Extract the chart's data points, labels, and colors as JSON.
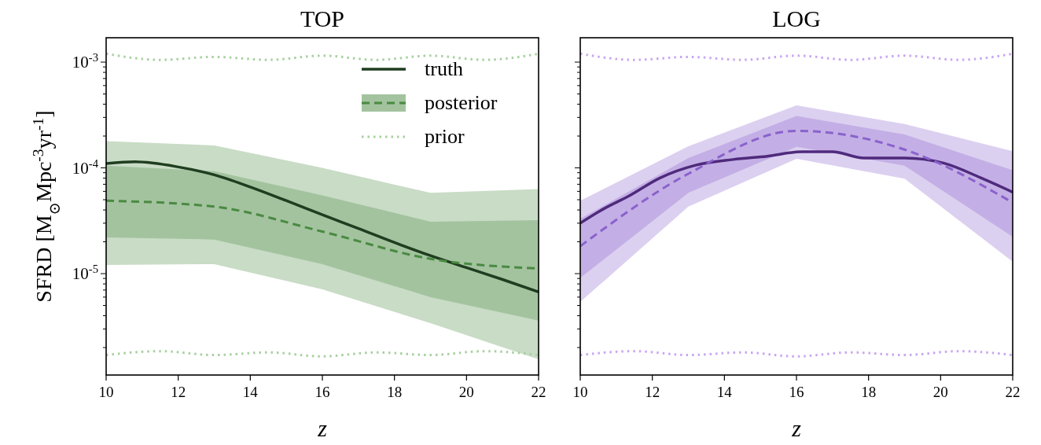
{
  "chart_data": [
    {
      "type": "line",
      "title": "TOP",
      "xlabel": "z",
      "ylabel": "SFRD [M$_{⊙}$Mpc$^{-3}$yr$^{-1}$]",
      "log": "y",
      "grid": false,
      "legend": "top right",
      "xlim": [
        10,
        22
      ],
      "xticks": [
        10,
        12,
        14,
        16,
        18,
        20,
        22
      ],
      "ylim": [
        1.1e-06,
        0.0017
      ],
      "yticks": [
        {
          "value": 2e-06,
          "label": null
        },
        {
          "value": 3e-06,
          "label": null
        },
        {
          "value": 4e-06,
          "label": null
        },
        {
          "value": 5e-06,
          "label": null
        },
        {
          "value": 6e-06,
          "label": null
        },
        {
          "value": 7e-06,
          "label": null
        },
        {
          "value": 8e-06,
          "label": null
        },
        {
          "value": 9e-06,
          "label": null
        },
        {
          "value": 1e-05,
          "label": "10$^{-5}$"
        },
        {
          "value": 2e-05,
          "label": null
        },
        {
          "value": 3e-05,
          "label": null
        },
        {
          "value": 4e-05,
          "label": null
        },
        {
          "value": 5e-05,
          "label": null
        },
        {
          "value": 6e-05,
          "label": null
        },
        {
          "value": 7e-05,
          "label": null
        },
        {
          "value": 8e-05,
          "label": null
        },
        {
          "value": 9e-05,
          "label": null
        },
        {
          "value": 0.0001,
          "label": "10$^{-4}$"
        },
        {
          "value": 0.0002,
          "label": null
        },
        {
          "value": 0.0003,
          "label": null
        },
        {
          "value": 0.0004,
          "label": null
        },
        {
          "value": 0.0005,
          "label": null
        },
        {
          "value": 0.0006,
          "label": null
        },
        {
          "value": 0.0007,
          "label": null
        },
        {
          "value": 0.0008,
          "label": null
        },
        {
          "value": 0.0009,
          "label": null
        },
        {
          "value": 0.001,
          "label": "10$^{-3}$"
        }
      ],
      "series": [
        {
          "name": "truth",
          "color": "#1f3d1f",
          "line_style": "solid",
          "x": [
            10,
            10.8,
            12,
            13,
            14,
            15,
            16,
            17,
            18,
            19,
            20,
            21,
            22
          ],
          "values": [
            0.00011,
            0.000114,
            0.000102,
            8.6e-05,
            6.6e-05,
            4.9e-05,
            3.6e-05,
            2.67e-05,
            1.97e-05,
            1.48e-05,
            1.14e-05,
            8.8e-06,
            6.7e-06
          ]
        },
        {
          "color": "#4a8a42",
          "x": [
            10,
            13,
            16,
            19,
            22
          ],
          "values": [
            null,
            null,
            null,
            null,
            null
          ],
          "lower": [
            1.21e-05,
            1.23e-05,
            7.1e-06,
            3.4e-06,
            1.55e-06
          ],
          "upper": [
            0.000179,
            0.000163,
            0.0001,
            5.8e-05,
            6.3e-05
          ]
        },
        {
          "name": "posterior",
          "color": "#4a8a42",
          "line_style": "dashed",
          "x": [
            10,
            13,
            16,
            19,
            22
          ],
          "values": [
            4.9e-05,
            4.3e-05,
            2.5e-05,
            1.38e-05,
            1.12e-05
          ],
          "lower": [
            2.2e-05,
            2.1e-05,
            1.23e-05,
            6e-06,
            3.6e-06
          ],
          "upper": [
            0.000105,
            9.3e-05,
            5.5e-05,
            3.1e-05,
            3.2e-05
          ]
        },
        {
          "name": "prior",
          "color": "#a8d0a0",
          "line_style": "dotted",
          "x": [
            10,
            11.5,
            13,
            14.5,
            16,
            17.5,
            19,
            20.5,
            22
          ],
          "values": [
            0.0012,
            0.00105,
            0.00112,
            0.00105,
            0.00115,
            0.00105,
            0.00115,
            0.00105,
            0.0012
          ]
        },
        {
          "color": "#a8d0a0",
          "line_style": "dotted",
          "x": [
            10,
            11.5,
            13,
            14.5,
            16,
            17.5,
            19,
            20.5,
            22
          ],
          "values": [
            1.7e-06,
            1.85e-06,
            1.7e-06,
            1.8e-06,
            1.65e-06,
            1.8e-06,
            1.7e-06,
            1.85e-06,
            1.7e-06
          ]
        }
      ]
    },
    {
      "type": "line",
      "title": "LOG",
      "xlabel": "z",
      "log": "y",
      "grid": false,
      "tick_labels": "x",
      "xlim": [
        10,
        22
      ],
      "xticks": [
        10,
        12,
        14,
        16,
        18,
        20,
        22
      ],
      "ylim": [
        1.1e-06,
        0.0017
      ],
      "yticks": [
        {
          "value": 2e-06,
          "label": null
        },
        {
          "value": 3e-06,
          "label": null
        },
        {
          "value": 4e-06,
          "label": null
        },
        {
          "value": 5e-06,
          "label": null
        },
        {
          "value": 6e-06,
          "label": null
        },
        {
          "value": 7e-06,
          "label": null
        },
        {
          "value": 8e-06,
          "label": null
        },
        {
          "value": 9e-06,
          "label": null
        },
        {
          "value": 1e-05,
          "label": null
        },
        {
          "value": 2e-05,
          "label": null
        },
        {
          "value": 3e-05,
          "label": null
        },
        {
          "value": 4e-05,
          "label": null
        },
        {
          "value": 5e-05,
          "label": null
        },
        {
          "value": 6e-05,
          "label": null
        },
        {
          "value": 7e-05,
          "label": null
        },
        {
          "value": 8e-05,
          "label": null
        },
        {
          "value": 9e-05,
          "label": null
        },
        {
          "value": 0.0001,
          "label": null
        },
        {
          "value": 0.0002,
          "label": null
        },
        {
          "value": 0.0003,
          "label": null
        },
        {
          "value": 0.0004,
          "label": null
        },
        {
          "value": 0.0005,
          "label": null
        },
        {
          "value": 0.0006,
          "label": null
        },
        {
          "value": 0.0007,
          "label": null
        },
        {
          "value": 0.0008,
          "label": null
        },
        {
          "value": 0.0009,
          "label": null
        },
        {
          "value": 0.001,
          "label": null
        }
      ],
      "series": [
        {
          "color": "#4f2a7c",
          "line_style": "solid",
          "x": [
            10,
            10.65,
            11.34,
            12.2,
            13.2,
            14.24,
            15.19,
            16.14,
            17,
            17.87,
            19,
            20.08,
            21.1,
            22
          ],
          "values": [
            3e-05,
            4.1e-05,
            5.4e-05,
            8e-05,
            0.000106,
            0.00012,
            0.000129,
            0.000142,
            0.000142,
            0.000124,
            0.000124,
            0.000111,
            8.1e-05,
            5.9e-05
          ]
        },
        {
          "color": "#8a62cc",
          "x": [
            10,
            13,
            16,
            19,
            22
          ],
          "values": [
            null,
            null,
            null,
            null,
            null
          ],
          "lower": [
            5.4e-06,
            4.3e-05,
            0.000122,
            7.9e-05,
            1.3e-05
          ],
          "upper": [
            4.9e-05,
            0.00016,
            0.00039,
            0.00026,
            0.000144
          ]
        },
        {
          "color": "#8a62cc",
          "line_style": "dashed",
          "x": [
            10,
            13,
            16,
            19,
            22
          ],
          "values": [
            1.82e-05,
            8.8e-05,
            0.000224,
            0.000149,
            4.7e-05
          ],
          "lower": [
            9.1e-06,
            5.8e-05,
            0.000158,
            0.000105,
            2.23e-05
          ],
          "upper": [
            3.3e-05,
            0.000124,
            0.00031,
            0.000207,
            9.5e-05
          ]
        },
        {
          "color": "#c9a6f2",
          "line_style": "dotted",
          "x": [
            10,
            11.5,
            13,
            14.5,
            16,
            17.5,
            19,
            20.5,
            22
          ],
          "values": [
            0.0012,
            0.00105,
            0.00112,
            0.00105,
            0.00115,
            0.00105,
            0.00115,
            0.00105,
            0.0012
          ]
        },
        {
          "color": "#c9a6f2",
          "line_style": "dotted",
          "x": [
            10,
            11.5,
            13,
            14.5,
            16,
            17.5,
            19,
            20.5,
            22
          ],
          "values": [
            1.7e-06,
            1.85e-06,
            1.7e-06,
            1.8e-06,
            1.65e-06,
            1.8e-06,
            1.7e-06,
            1.85e-06,
            1.7e-06
          ]
        }
      ]
    }
  ]
}
